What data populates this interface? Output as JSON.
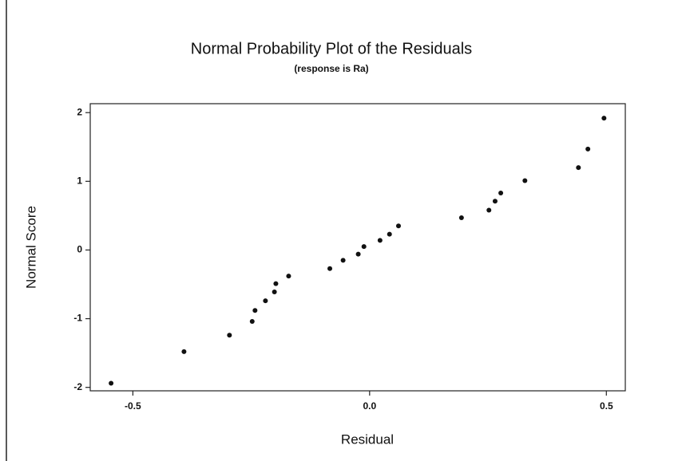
{
  "chart_data": {
    "type": "scatter",
    "title": "Normal Probability Plot of the Residuals",
    "subtitle": "(response is Ra)",
    "x_label": "Residual",
    "y_label": "Normal Score",
    "color": "#111111",
    "x": [
      -0.546,
      -0.392,
      -0.296,
      -0.248,
      -0.242,
      -0.22,
      -0.201,
      -0.198,
      -0.171,
      -0.084,
      -0.056,
      -0.024,
      -0.012,
      0.022,
      0.042,
      0.061,
      0.194,
      0.252,
      0.265,
      0.277,
      0.328,
      0.441,
      0.461,
      0.495
    ],
    "values": [
      -1.94,
      -1.48,
      -1.24,
      -1.04,
      -0.88,
      -0.74,
      -0.61,
      -0.49,
      -0.38,
      -0.27,
      -0.15,
      -0.06,
      0.05,
      0.14,
      0.23,
      0.35,
      0.47,
      0.58,
      0.71,
      0.83,
      1.01,
      1.2,
      1.47,
      1.92
    ],
    "xlim": [
      -0.59,
      0.54
    ],
    "ylim": [
      -2.05,
      2.13
    ],
    "xticks": [
      {
        "value": -0.5,
        "label": "-0.5"
      },
      {
        "value": 0,
        "label": "0.0"
      },
      {
        "value": 0.5,
        "label": "0.5"
      }
    ],
    "yticks": [
      -2,
      -1,
      0,
      1,
      2
    ]
  }
}
